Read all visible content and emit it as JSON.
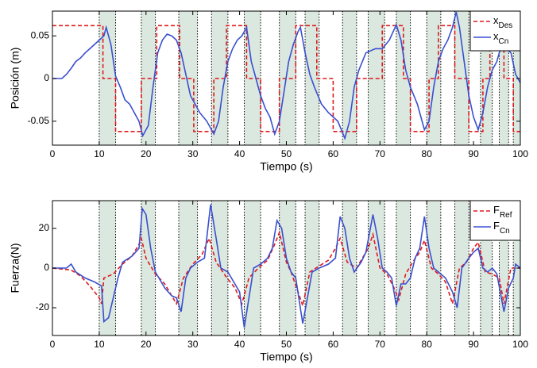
{
  "chart_data": [
    {
      "type": "line",
      "xlabel": "Tiempo (s)",
      "ylabel": "Posición (m)",
      "xlim": [
        0,
        100
      ],
      "xticks": [
        0,
        10,
        20,
        30,
        40,
        50,
        60,
        70,
        80,
        90,
        100
      ],
      "ylim": [
        -0.078,
        0.079
      ],
      "yticks": [
        -0.05,
        0,
        0.05
      ],
      "legend": "upper right",
      "shade_color": "#dbe8df",
      "shaded_regions": [
        [
          10,
          13.5
        ],
        [
          19,
          22
        ],
        [
          27,
          31
        ],
        [
          34,
          37.5
        ],
        [
          41,
          44.5
        ],
        [
          48.5,
          52
        ],
        [
          54,
          57
        ],
        [
          62,
          65
        ],
        [
          67.5,
          71
        ],
        [
          73.5,
          76.5
        ],
        [
          80,
          83
        ],
        [
          86,
          89
        ],
        [
          91.5,
          94
        ],
        [
          95.5,
          97.5
        ],
        [
          98.5,
          100
        ]
      ],
      "series": [
        {
          "name": "x",
          "name_sub": "Des",
          "color": "#e0191b",
          "dash": true,
          "x": [
            0,
            10.8,
            10.8,
            13.5,
            13.5,
            19,
            19,
            22.3,
            22.3,
            27.2,
            27.2,
            30.2,
            30.2,
            34.5,
            34.5,
            37.2,
            37.2,
            41.5,
            41.5,
            44.5,
            44.5,
            48.5,
            48.5,
            52,
            52,
            56.5,
            56.5,
            60,
            60,
            65,
            65,
            70.5,
            70.5,
            75,
            75,
            76.5,
            76.5,
            80.5,
            80.5,
            82.5,
            82.5,
            86,
            86,
            89,
            89,
            92,
            92,
            93.5,
            93.5,
            96.5,
            96.5,
            98.5,
            98.5,
            100
          ],
          "values": [
            0.062,
            0.062,
            0,
            0,
            -0.062,
            -0.062,
            0,
            0,
            0.062,
            0.062,
            0,
            0,
            -0.062,
            -0.062,
            0,
            0,
            0.062,
            0.062,
            0,
            0,
            -0.062,
            -0.062,
            0,
            0,
            0.062,
            0.062,
            0,
            0,
            -0.062,
            -0.062,
            0,
            0,
            0.062,
            0.062,
            0,
            0,
            -0.062,
            -0.062,
            0,
            0,
            0.062,
            0.062,
            0,
            0,
            -0.062,
            -0.062,
            0,
            0,
            0.062,
            0.062,
            0,
            0,
            -0.062,
            -0.062
          ]
        },
        {
          "name": "x",
          "name_sub": "Cn",
          "color": "#3a4fd0",
          "dash": false,
          "x": [
            0,
            2,
            3,
            4,
            5,
            6,
            7,
            8,
            9,
            10,
            11,
            11.5,
            12.5,
            13.5,
            14.5,
            15.5,
            16.5,
            17.5,
            18.5,
            19.3,
            20.5,
            21.5,
            22.5,
            23.5,
            24.5,
            25.5,
            26.5,
            27.5,
            28.5,
            29.5,
            30.5,
            31.5,
            33,
            34.5,
            35.5,
            36.5,
            37.5,
            38.5,
            39.5,
            40.5,
            41.5,
            42.5,
            43.5,
            44.5,
            45.5,
            46.5,
            47.5,
            48.5,
            49.5,
            50.5,
            51.5,
            52.5,
            53,
            54,
            55,
            56,
            57.5,
            59,
            61,
            62.5,
            63.5,
            64.5,
            65.5,
            67,
            69,
            70.5,
            72,
            73.5,
            74.5,
            75.5,
            76.5,
            78,
            79.5,
            80.5,
            81.5,
            82.5,
            83.5,
            84.5,
            85.5,
            86.3,
            87,
            88,
            89,
            90,
            91,
            92,
            93,
            94,
            95,
            96,
            97,
            98,
            99,
            100
          ],
          "values": [
            0,
            0,
            0.005,
            0.012,
            0.02,
            0.024,
            0.03,
            0.035,
            0.04,
            0.045,
            0.05,
            0.06,
            0.04,
            0.003,
            -0.01,
            -0.025,
            -0.03,
            -0.04,
            -0.05,
            -0.067,
            -0.055,
            -0.01,
            0.03,
            0.045,
            0.052,
            0.05,
            0.045,
            0.03,
            0.005,
            -0.02,
            -0.03,
            -0.04,
            -0.05,
            -0.065,
            -0.05,
            -0.01,
            0.02,
            0.035,
            0.045,
            0.05,
            0.06,
            0.02,
            0,
            -0.02,
            -0.035,
            -0.045,
            -0.065,
            -0.05,
            -0.015,
            0.02,
            0.04,
            0.055,
            0.06,
            0.03,
            0.005,
            -0.01,
            -0.03,
            -0.04,
            -0.05,
            -0.07,
            -0.05,
            -0.01,
            0.01,
            0.03,
            0.035,
            0.035,
            0.045,
            0.063,
            0.045,
            0.01,
            -0.01,
            -0.03,
            -0.06,
            -0.05,
            -0.01,
            0.02,
            0.035,
            0.045,
            0.06,
            0.078,
            0.06,
            0.02,
            -0.02,
            -0.045,
            -0.06,
            -0.04,
            -0.01,
            0.01,
            0.02,
            0.04,
            0.035,
            0.03,
            0.005,
            -0.005
          ]
        }
      ]
    },
    {
      "type": "line",
      "xlabel": "Tiempo (s)",
      "ylabel": "Fuerza(N)",
      "xlim": [
        0,
        100
      ],
      "xticks": [
        0,
        10,
        20,
        30,
        40,
        50,
        60,
        70,
        80,
        90,
        100
      ],
      "ylim": [
        -34,
        34
      ],
      "yticks": [
        -20,
        0,
        20
      ],
      "legend": "upper right",
      "shade_color": "#dbe8df",
      "shaded_regions": [
        [
          10,
          13.5
        ],
        [
          19,
          22
        ],
        [
          27,
          31
        ],
        [
          34,
          37.5
        ],
        [
          41,
          44.5
        ],
        [
          48.5,
          52
        ],
        [
          54,
          57
        ],
        [
          62,
          65
        ],
        [
          67.5,
          71
        ],
        [
          73.5,
          76.5
        ],
        [
          80,
          83
        ],
        [
          86,
          89
        ],
        [
          91.5,
          94
        ],
        [
          95.5,
          97.5
        ],
        [
          98.5,
          100
        ]
      ],
      "series": [
        {
          "name": "F",
          "name_sub": "Ref",
          "color": "#e0191b",
          "dash": true,
          "x": [
            0,
            4,
            6,
            8,
            10,
            10.5,
            11,
            13,
            15,
            17,
            18.5,
            19,
            20,
            22,
            24,
            25.5,
            26.5,
            28,
            30,
            32,
            33.5,
            35,
            37,
            39,
            40.5,
            42,
            44,
            46,
            47.5,
            48.5,
            50,
            51,
            52.5,
            53.5,
            55,
            57,
            59,
            60.5,
            61.5,
            63,
            65,
            66,
            67.5,
            68.5,
            70,
            71.5,
            73,
            74,
            75.5,
            77,
            78.5,
            79.5,
            81,
            82.5,
            84,
            85.5,
            87,
            88.5,
            90,
            91,
            92.5,
            94,
            95.5,
            96.5,
            98,
            100
          ],
          "values": [
            0,
            -1,
            -4,
            -9,
            -15,
            -18,
            -5,
            -3,
            2,
            6,
            12,
            15,
            5,
            -3,
            -8,
            -14,
            -18,
            -5,
            2,
            7,
            15,
            3,
            -4,
            -10,
            -18,
            -5,
            0,
            4,
            12,
            18,
            3,
            -2,
            -12,
            -19,
            -2,
            1,
            4,
            10,
            15,
            3,
            0,
            4,
            10,
            17,
            0,
            -3,
            -10,
            -16,
            -3,
            3,
            8,
            14,
            0,
            -3,
            -7,
            -18,
            0,
            3,
            10,
            13,
            -2,
            -3,
            -5,
            -18,
            0,
            0
          ]
        },
        {
          "name": "F",
          "name_sub": "Cn",
          "color": "#3a4fd0",
          "dash": false,
          "x": [
            0,
            3,
            4,
            5,
            7,
            9,
            10.5,
            11,
            12,
            13,
            14,
            15,
            17,
            18.5,
            19.2,
            20,
            21,
            22,
            23,
            24,
            25.5,
            26.5,
            27.5,
            28.5,
            29.5,
            31,
            32.5,
            33.8,
            35,
            36,
            37.5,
            39,
            40,
            41,
            42,
            43,
            44.5,
            46,
            47,
            48,
            49,
            50,
            51,
            52,
            53.5,
            54.5,
            55.5,
            57,
            59,
            60.5,
            61.5,
            62.5,
            63.5,
            64.5,
            66,
            67,
            68.5,
            69.5,
            70.5,
            71.5,
            72.5,
            73.5,
            74.5,
            75.5,
            76.5,
            77.5,
            78.5,
            79.5,
            80.5,
            81.5,
            82.5,
            84,
            85.5,
            86.5,
            87.5,
            89,
            90,
            91,
            92,
            93,
            94,
            95,
            96.5,
            97.5,
            98.5,
            99,
            100
          ],
          "values": [
            0,
            0,
            2,
            -2,
            -5,
            -7,
            -9,
            -27,
            -25,
            -15,
            -5,
            3,
            6,
            10,
            30,
            27,
            10,
            -2,
            -6,
            -10,
            -14,
            -15,
            -22,
            -5,
            0,
            3,
            5,
            32,
            15,
            0,
            -2,
            -8,
            -12,
            -30,
            -15,
            0,
            2,
            5,
            10,
            24,
            20,
            5,
            -2,
            -5,
            -28,
            -15,
            -2,
            0,
            2,
            5,
            26,
            20,
            5,
            -2,
            3,
            8,
            27,
            15,
            0,
            -2,
            -5,
            -19,
            -8,
            -8,
            -5,
            5,
            10,
            26,
            10,
            0,
            -2,
            -5,
            -12,
            -20,
            0,
            5,
            8,
            10,
            0,
            -2,
            0,
            -3,
            -22,
            -10,
            -5,
            2,
            0
          ]
        }
      ]
    }
  ]
}
